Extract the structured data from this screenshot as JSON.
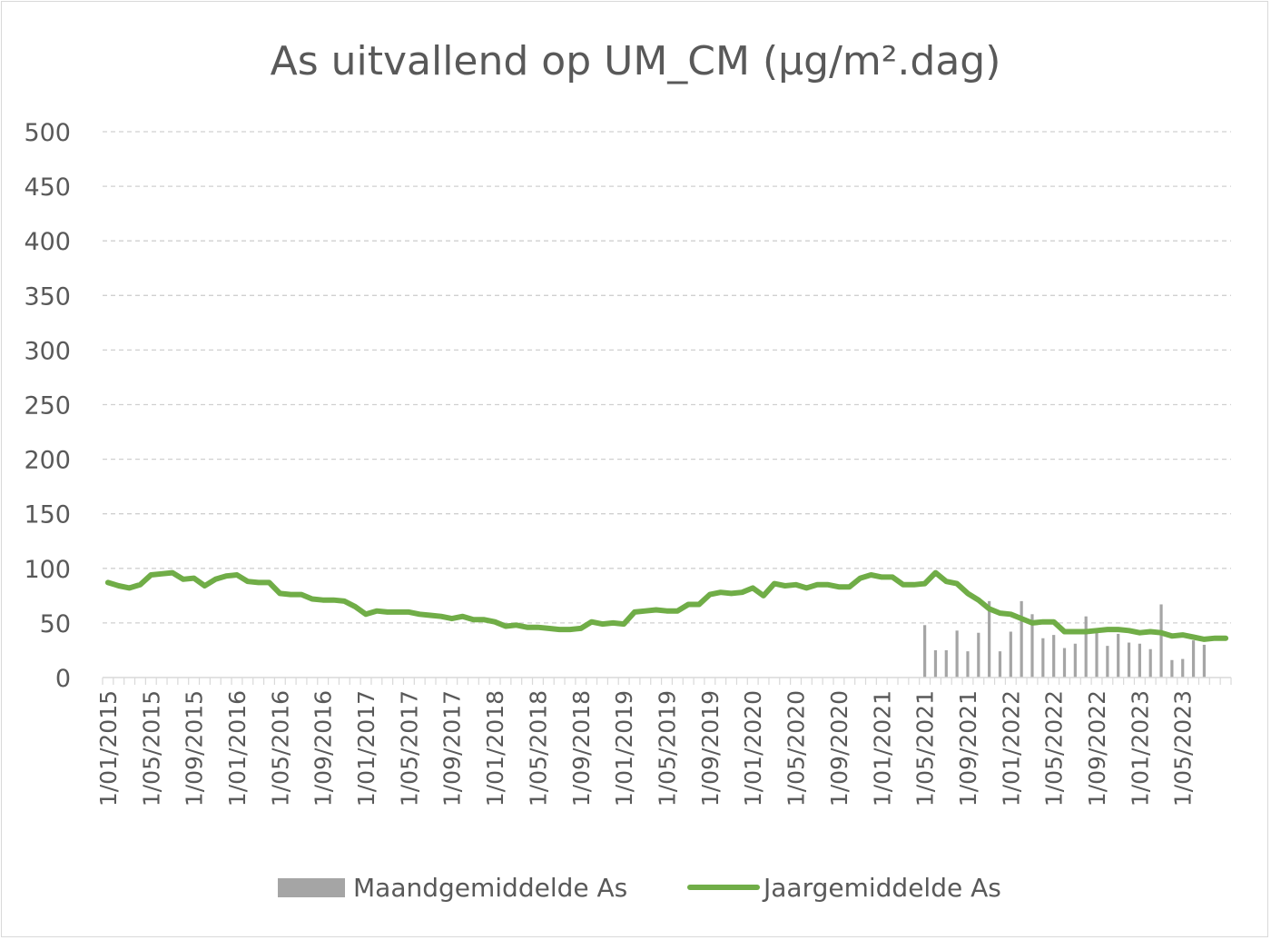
{
  "chart_data": {
    "type": "bar+line",
    "title": "As uitvallend op UM_CM (µg/m².dag)",
    "xlabel": "",
    "ylabel": "",
    "ylim": [
      0,
      500
    ],
    "yticks": [
      0,
      50,
      100,
      150,
      200,
      250,
      300,
      350,
      400,
      450,
      500
    ],
    "grid": true,
    "legend_position": "bottom",
    "x_tick_labels": [
      "1/01/2015",
      "1/05/2015",
      "1/09/2015",
      "1/01/2016",
      "1/05/2016",
      "1/09/2016",
      "1/01/2017",
      "1/05/2017",
      "1/09/2017",
      "1/01/2018",
      "1/05/2018",
      "1/09/2018",
      "1/01/2019",
      "1/05/2019",
      "1/09/2019",
      "1/01/2020",
      "1/05/2020",
      "1/09/2020",
      "1/01/2021",
      "1/05/2021",
      "1/09/2021",
      "1/01/2022",
      "1/05/2022",
      "1/09/2022",
      "1/01/2023",
      "1/05/2023"
    ],
    "months_start": "2015-01",
    "months_end": "2023-09",
    "series": [
      {
        "name": "Maandgemiddelde As",
        "type": "bar",
        "color": "#a5a5a5",
        "start": "2021-05",
        "values": [
          48,
          25,
          25,
          43,
          24,
          41,
          70,
          24,
          42,
          70,
          58,
          36,
          39,
          27,
          31,
          56,
          43,
          29,
          40,
          32,
          31,
          26,
          67,
          16,
          17,
          34,
          30
        ]
      },
      {
        "name": "Jaargemiddelde As",
        "type": "line",
        "color": "#70ad47",
        "start": "2015-01",
        "values": [
          87,
          84,
          82,
          85,
          94,
          95,
          96,
          90,
          91,
          84,
          90,
          93,
          94,
          88,
          87,
          87,
          77,
          76,
          76,
          72,
          71,
          71,
          70,
          65,
          58,
          61,
          60,
          60,
          60,
          58,
          57,
          56,
          54,
          56,
          53,
          53,
          51,
          47,
          48,
          46,
          46,
          45,
          44,
          44,
          45,
          51,
          49,
          50,
          49,
          60,
          61,
          62,
          61,
          61,
          67,
          67,
          76,
          78,
          77,
          78,
          82,
          75,
          86,
          84,
          85,
          82,
          85,
          85,
          83,
          83,
          91,
          94,
          92,
          92,
          85,
          85,
          86,
          96,
          88,
          86,
          77,
          71,
          63,
          59,
          58,
          54,
          50,
          51,
          51,
          42,
          42,
          42,
          43,
          44,
          44,
          43,
          41,
          42,
          41,
          38,
          39,
          37,
          35,
          36,
          36
        ]
      }
    ]
  }
}
